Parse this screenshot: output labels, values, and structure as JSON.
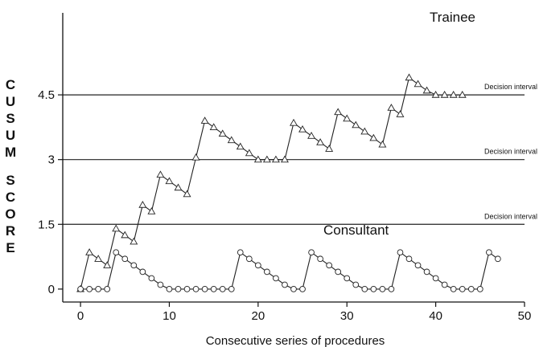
{
  "chart_data": {
    "type": "line",
    "xlabel": "Consecutive series of procedures",
    "ylabel_words": [
      "CUSUM",
      "SCORE"
    ],
    "xlim": [
      -2,
      50
    ],
    "ylim": [
      -0.3,
      6.4
    ],
    "xticks": [
      0,
      10,
      20,
      30,
      40,
      50
    ],
    "yticks": [
      {
        "value": 0,
        "label": "0"
      },
      {
        "value": 1.5,
        "label": "1.5"
      },
      {
        "value": 3,
        "label": "3"
      },
      {
        "value": 4.5,
        "label": "4.5"
      }
    ],
    "reference_lines": [
      {
        "y": 1.5,
        "label": "Decision interval"
      },
      {
        "y": 3,
        "label": "Decision interval"
      },
      {
        "y": 4.5,
        "label": "Decision interval"
      }
    ],
    "series": [
      {
        "name": "Trainee",
        "marker": "triangle",
        "x": [
          0,
          1,
          2,
          3,
          4,
          5,
          6,
          7,
          8,
          9,
          10,
          11,
          12,
          13,
          14,
          15,
          16,
          17,
          18,
          19,
          20,
          21,
          22,
          23,
          24,
          25,
          26,
          27,
          28,
          29,
          30,
          31,
          32,
          33,
          34,
          35,
          36,
          37,
          38,
          39,
          40,
          41,
          42,
          43
        ],
        "y": [
          0,
          0.85,
          0.7,
          0.55,
          1.4,
          1.25,
          1.1,
          1.95,
          1.8,
          2.65,
          2.5,
          2.35,
          2.2,
          3.05,
          3.9,
          3.75,
          3.6,
          3.45,
          3.3,
          3.15,
          3.0,
          3.0,
          3.0,
          3.0,
          3.85,
          3.7,
          3.55,
          3.4,
          3.25,
          4.1,
          3.95,
          3.8,
          3.65,
          3.5,
          3.35,
          4.2,
          4.05,
          4.9,
          4.75,
          4.6,
          4.5,
          4.5,
          4.5,
          4.5
        ]
      },
      {
        "name": "Consultant",
        "marker": "circle",
        "x": [
          0,
          1,
          2,
          3,
          4,
          5,
          6,
          7,
          8,
          9,
          10,
          11,
          12,
          13,
          14,
          15,
          16,
          17,
          18,
          19,
          20,
          21,
          22,
          23,
          24,
          25,
          26,
          27,
          28,
          29,
          30,
          31,
          32,
          33,
          34,
          35,
          36,
          37,
          38,
          39,
          40,
          41,
          42,
          43,
          44,
          45,
          46,
          47
        ],
        "y": [
          0,
          0,
          0,
          0,
          0.85,
          0.7,
          0.55,
          0.4,
          0.25,
          0.1,
          0,
          0,
          0,
          0,
          0,
          0,
          0,
          0,
          0.85,
          0.7,
          0.55,
          0.4,
          0.25,
          0.1,
          0,
          0,
          0.85,
          0.7,
          0.55,
          0.4,
          0.25,
          0.1,
          0,
          0,
          0,
          0,
          0.85,
          0.7,
          0.55,
          0.4,
          0.25,
          0.1,
          0,
          0,
          0,
          0,
          0.85,
          0.7
        ]
      }
    ]
  }
}
